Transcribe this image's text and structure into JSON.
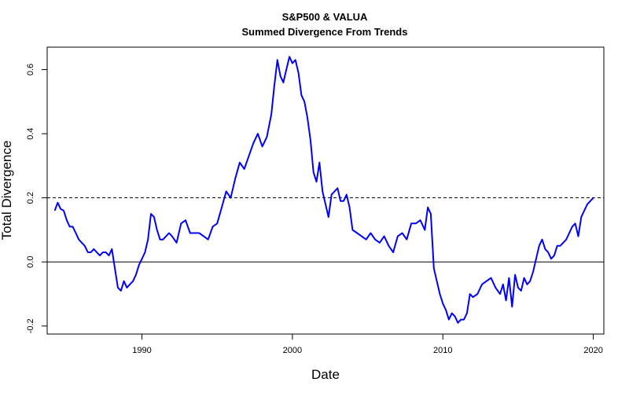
{
  "chart_data": {
    "type": "line",
    "title": "S&P500 & VALUA",
    "subtitle": "Summed Divergence From Trends",
    "xlabel": "Date",
    "ylabel": "Total Divergence",
    "xlim": [
      1983.7,
      2020.7
    ],
    "ylim": [
      -0.225,
      0.67
    ],
    "xticks": [
      1990,
      2000,
      2010,
      2020
    ],
    "xtick_labels": [
      "1990",
      "2000",
      "2010",
      "2020"
    ],
    "yticks": [
      -0.2,
      0.0,
      0.2,
      0.4,
      0.6
    ],
    "ytick_labels": [
      "-0.2",
      "0.0",
      "0.2",
      "0.4",
      "0.6"
    ],
    "grid": false,
    "reference_lines": [
      {
        "y": 0.2,
        "style": "dashed",
        "color": "#000000"
      },
      {
        "y": 0.0,
        "style": "solid",
        "color": "#000000"
      }
    ],
    "series": [
      {
        "color": "#0000ff",
        "x": [
          1984.2,
          1984.4,
          1984.6,
          1984.8,
          1985.0,
          1985.2,
          1985.4,
          1985.6,
          1985.8,
          1986.0,
          1986.2,
          1986.4,
          1986.6,
          1986.8,
          1987.0,
          1987.2,
          1987.4,
          1987.6,
          1987.8,
          1988.0,
          1988.2,
          1988.4,
          1988.6,
          1988.8,
          1989.0,
          1989.2,
          1989.4,
          1989.6,
          1989.8,
          1990.0,
          1990.2,
          1990.4,
          1990.6,
          1990.8,
          1991.0,
          1991.2,
          1991.4,
          1991.6,
          1991.8,
          1992.0,
          1992.3,
          1992.6,
          1992.9,
          1993.2,
          1993.5,
          1993.8,
          1994.1,
          1994.4,
          1994.7,
          1995.0,
          1995.3,
          1995.6,
          1995.9,
          1996.2,
          1996.5,
          1996.8,
          1997.1,
          1997.4,
          1997.7,
          1998.0,
          1998.3,
          1998.6,
          1998.8,
          1999.0,
          1999.2,
          1999.4,
          1999.6,
          1999.8,
          2000.0,
          2000.2,
          2000.4,
          2000.6,
          2000.8,
          2001.0,
          2001.2,
          2001.4,
          2001.6,
          2001.8,
          2002.0,
          2002.2,
          2002.4,
          2002.6,
          2002.8,
          2003.0,
          2003.2,
          2003.4,
          2003.6,
          2003.8,
          2004.0,
          2004.3,
          2004.6,
          2004.9,
          2005.2,
          2005.5,
          2005.8,
          2006.1,
          2006.4,
          2006.7,
          2007.0,
          2007.3,
          2007.6,
          2007.9,
          2008.2,
          2008.5,
          2008.8,
          2009.0,
          2009.2,
          2009.4,
          2009.6,
          2009.8,
          2010.0,
          2010.2,
          2010.4,
          2010.6,
          2010.8,
          2011.0,
          2011.2,
          2011.4,
          2011.6,
          2011.8,
          2012.0,
          2012.3,
          2012.6,
          2012.9,
          2013.2,
          2013.5,
          2013.8,
          2014.0,
          2014.2,
          2014.4,
          2014.6,
          2014.8,
          2015.0,
          2015.2,
          2015.4,
          2015.6,
          2015.8,
          2016.0,
          2016.2,
          2016.4,
          2016.6,
          2016.8,
          2017.0,
          2017.2,
          2017.4,
          2017.6,
          2017.8,
          2018.0,
          2018.2,
          2018.4,
          2018.6,
          2018.8,
          2019.0,
          2019.2,
          2019.4,
          2019.6,
          2019.8,
          2020.0
        ],
        "y": [
          0.16,
          0.185,
          0.165,
          0.16,
          0.13,
          0.11,
          0.11,
          0.09,
          0.07,
          0.06,
          0.05,
          0.03,
          0.03,
          0.04,
          0.03,
          0.02,
          0.03,
          0.03,
          0.02,
          0.04,
          -0.02,
          -0.08,
          -0.09,
          -0.06,
          -0.08,
          -0.07,
          -0.06,
          -0.04,
          -0.01,
          0.01,
          0.03,
          0.07,
          0.15,
          0.14,
          0.1,
          0.07,
          0.07,
          0.08,
          0.09,
          0.08,
          0.06,
          0.12,
          0.13,
          0.09,
          0.09,
          0.09,
          0.08,
          0.07,
          0.11,
          0.12,
          0.17,
          0.22,
          0.2,
          0.26,
          0.31,
          0.29,
          0.33,
          0.37,
          0.4,
          0.36,
          0.39,
          0.46,
          0.55,
          0.63,
          0.58,
          0.56,
          0.6,
          0.64,
          0.62,
          0.63,
          0.59,
          0.52,
          0.5,
          0.45,
          0.38,
          0.28,
          0.25,
          0.31,
          0.22,
          0.18,
          0.14,
          0.21,
          0.22,
          0.23,
          0.19,
          0.19,
          0.21,
          0.17,
          0.1,
          0.09,
          0.08,
          0.07,
          0.09,
          0.07,
          0.06,
          0.08,
          0.05,
          0.03,
          0.08,
          0.09,
          0.07,
          0.12,
          0.12,
          0.13,
          0.1,
          0.17,
          0.15,
          -0.02,
          -0.06,
          -0.1,
          -0.13,
          -0.15,
          -0.18,
          -0.16,
          -0.17,
          -0.19,
          -0.18,
          -0.18,
          -0.16,
          -0.1,
          -0.11,
          -0.1,
          -0.07,
          -0.06,
          -0.05,
          -0.08,
          -0.1,
          -0.07,
          -0.12,
          -0.05,
          -0.14,
          -0.04,
          -0.08,
          -0.09,
          -0.05,
          -0.07,
          -0.06,
          -0.03,
          0.01,
          0.05,
          0.07,
          0.04,
          0.03,
          0.01,
          0.02,
          0.05,
          0.05,
          0.06,
          0.07,
          0.09,
          0.11,
          0.12,
          0.08,
          0.14,
          0.16,
          0.18,
          0.19,
          0.2
        ]
      }
    ]
  }
}
